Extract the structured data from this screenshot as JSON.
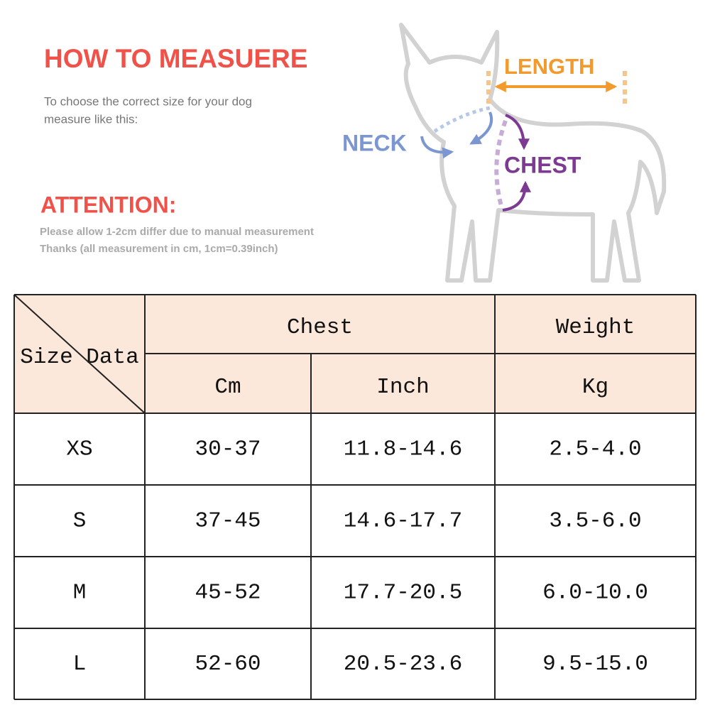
{
  "header": {
    "title": "HOW TO MEASUERE",
    "lines": [
      "To choose the correct size for your dog",
      "measure like this:"
    ]
  },
  "attention": {
    "title": "ATTENTION:",
    "lines": [
      "Please allow 1-2cm differ due to manual measurement",
      "Thanks (all measurement in cm, 1cm=0.39inch)"
    ]
  },
  "diagram": {
    "length": "LENGTH",
    "neck": "NECK",
    "chest": "CHEST"
  },
  "table": {
    "corner": "Size Data",
    "groups": [
      "Chest",
      "Weight"
    ],
    "units": [
      "Cm",
      "Inch",
      "Kg"
    ],
    "rows": [
      [
        "XS",
        "30-37",
        "11.8-14.6",
        "2.5-4.0"
      ],
      [
        "S",
        "37-45",
        "14.6-17.7",
        "3.5-6.0"
      ],
      [
        "M",
        "45-52",
        "17.7-20.5",
        "6.0-10.0"
      ],
      [
        "L",
        "52-60",
        "20.5-23.6",
        "9.5-15.0"
      ]
    ]
  }
}
